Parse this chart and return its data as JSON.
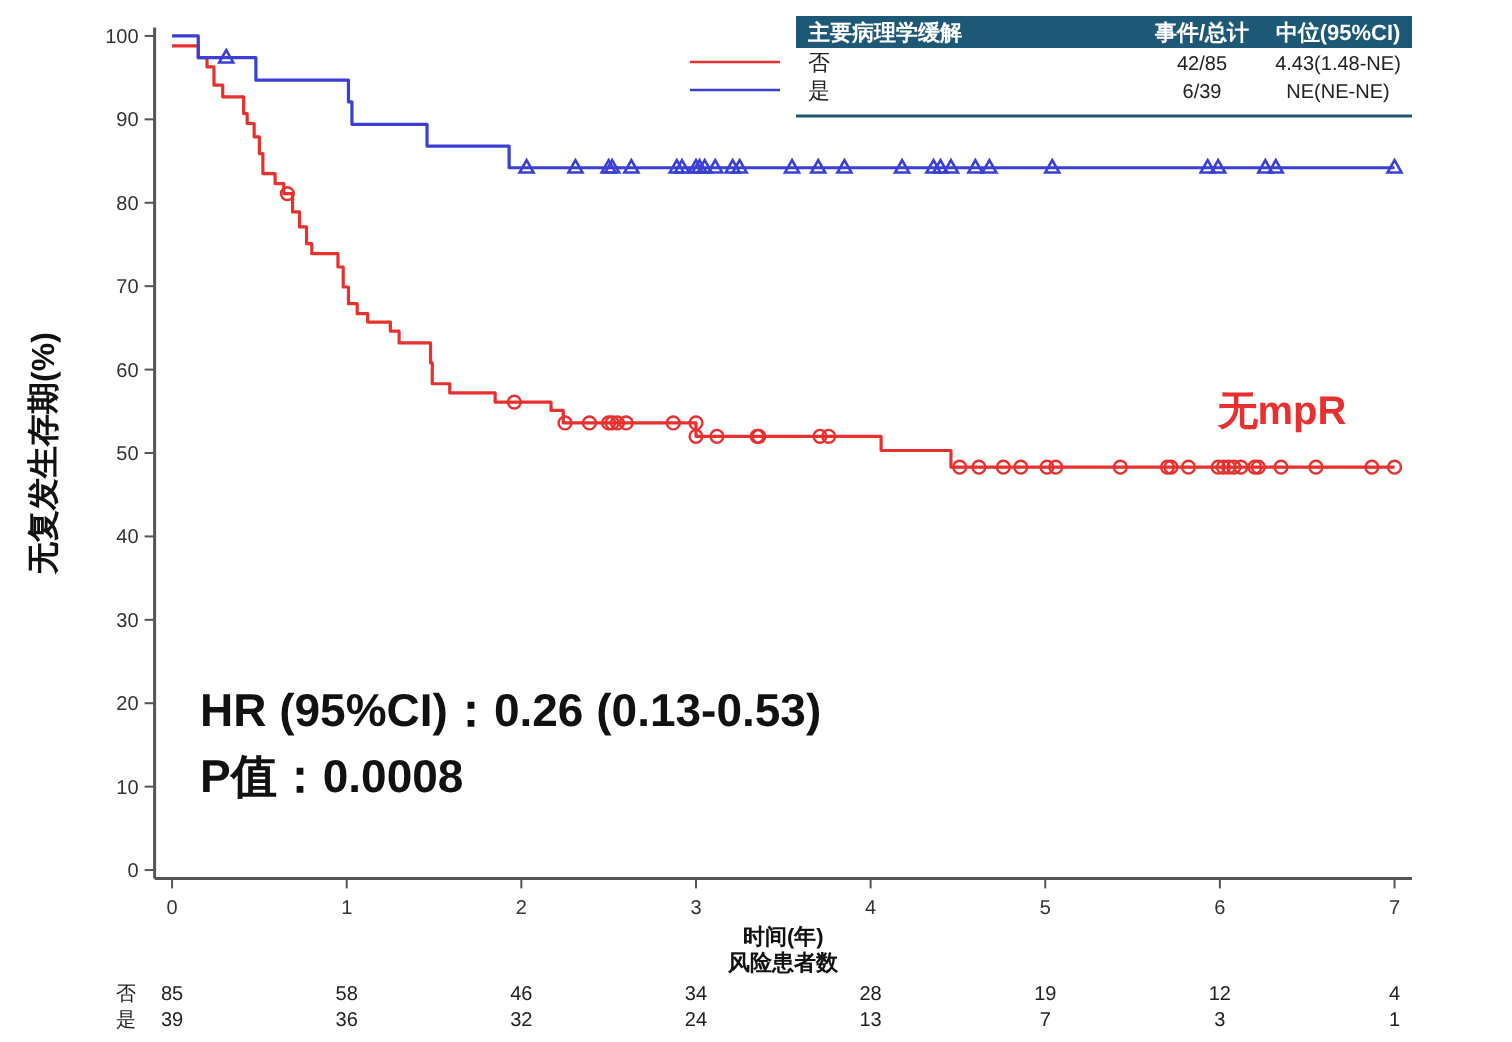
{
  "chart_data": {
    "type": "step",
    "xlabel": "时间(年)",
    "ylabel": "无复发生存期(%)",
    "legend_title": "主要病理学缓解",
    "legend": "top right",
    "grid": false,
    "xlim": [
      -0.1,
      7.1
    ],
    "ylim": [
      -1,
      101
    ],
    "xticks": [
      0,
      1,
      2,
      3,
      4,
      5,
      6,
      7
    ],
    "yticks": [
      0,
      10,
      20,
      30,
      40,
      50,
      60,
      70,
      80,
      90,
      100
    ],
    "series": [
      {
        "name": "否",
        "color": "#e8312f",
        "marker": "none",
        "x": [
          0,
          0.15,
          0.2,
          0.24,
          0.29,
          0.41,
          0.43,
          0.47,
          0.5,
          0.52,
          0.59,
          0.64,
          0.69,
          0.73,
          0.77,
          0.8,
          0.95,
          0.98,
          1.01,
          1.06,
          1.12,
          1.25,
          1.3,
          1.48,
          1.49,
          1.59,
          1.85,
          2.17,
          2.24,
          3.0,
          4.06,
          4.46,
          7.0
        ],
        "values": [
          98.8,
          97.4,
          96.3,
          94.1,
          92.7,
          90.7,
          89.5,
          87.9,
          85.9,
          83.5,
          82.3,
          81.1,
          78.9,
          77.1,
          75.1,
          73.9,
          72.3,
          69.9,
          67.9,
          66.7,
          65.7,
          64.6,
          63.2,
          60.8,
          58.3,
          57.2,
          56.1,
          55.1,
          53.6,
          52.0,
          50.3,
          48.3,
          48.3
        ]
      },
      {
        "name": "是",
        "color": "#3a3fd6",
        "marker": "none",
        "x": [
          0,
          0.15,
          0.48,
          1.01,
          1.03,
          1.46,
          1.93,
          7.0
        ],
        "values": [
          100,
          97.4,
          94.7,
          92.1,
          89.4,
          86.8,
          84.2,
          84.2
        ]
      },
      {
        "color": "#e8312f",
        "type": "scatter",
        "marker": "circle",
        "x": [
          0.66,
          1.96,
          2.25,
          2.39,
          2.5,
          2.52,
          2.55,
          2.6,
          2.87,
          3.0,
          3.0,
          3.12,
          3.35,
          3.36,
          3.71,
          3.76,
          4.51,
          4.62,
          4.76,
          4.86,
          5.01,
          5.06,
          5.43,
          5.7,
          5.72,
          5.82,
          5.99,
          6.02,
          6.05,
          6.08,
          6.12,
          6.2,
          6.22,
          6.35,
          6.55,
          6.87,
          7.0
        ],
        "values": [
          81.1,
          56.1,
          53.6,
          53.6,
          53.6,
          53.6,
          53.6,
          53.6,
          53.6,
          53.6,
          52.0,
          52.0,
          52.0,
          52.0,
          52.0,
          52.0,
          48.3,
          48.3,
          48.3,
          48.3,
          48.3,
          48.3,
          48.3,
          48.3,
          48.3,
          48.3,
          48.3,
          48.3,
          48.3,
          48.3,
          48.3,
          48.3,
          48.3,
          48.3,
          48.3,
          48.3,
          48.3
        ]
      },
      {
        "color": "#3a3fd6",
        "type": "scatter",
        "marker": "triangle",
        "x": [
          0.31,
          2.03,
          2.31,
          2.5,
          2.52,
          2.63,
          2.89,
          2.92,
          3.0,
          3.02,
          3.05,
          3.11,
          3.21,
          3.25,
          3.55,
          3.7,
          3.85,
          4.18,
          4.36,
          4.4,
          4.46,
          4.6,
          4.68,
          5.04,
          5.93,
          5.99,
          6.26,
          6.32,
          7.0
        ],
        "values": [
          97.4,
          84.2,
          84.2,
          84.2,
          84.2,
          84.2,
          84.2,
          84.2,
          84.2,
          84.2,
          84.2,
          84.2,
          84.2,
          84.2,
          84.2,
          84.2,
          84.2,
          84.2,
          84.2,
          84.2,
          84.2,
          84.2,
          84.2,
          84.2,
          84.2,
          84.2,
          84.2,
          84.2,
          84.2
        ]
      }
    ],
    "annotations": [
      "事件/总计",
      "中位(95%CI)",
      "42/85",
      "4.43(1.48-NE)",
      "6/39",
      "NE(NE-NE)",
      "风险患者数",
      "否",
      "85",
      "58",
      "46",
      "34",
      "28",
      "19",
      "12",
      "4",
      "是",
      "39",
      "36",
      "32",
      "24",
      "13",
      "7",
      "3",
      "1",
      "无mpR",
      "HR (95%CI)：0.26 (0.13-0.53)",
      "P值：0.0008"
    ]
  }
}
